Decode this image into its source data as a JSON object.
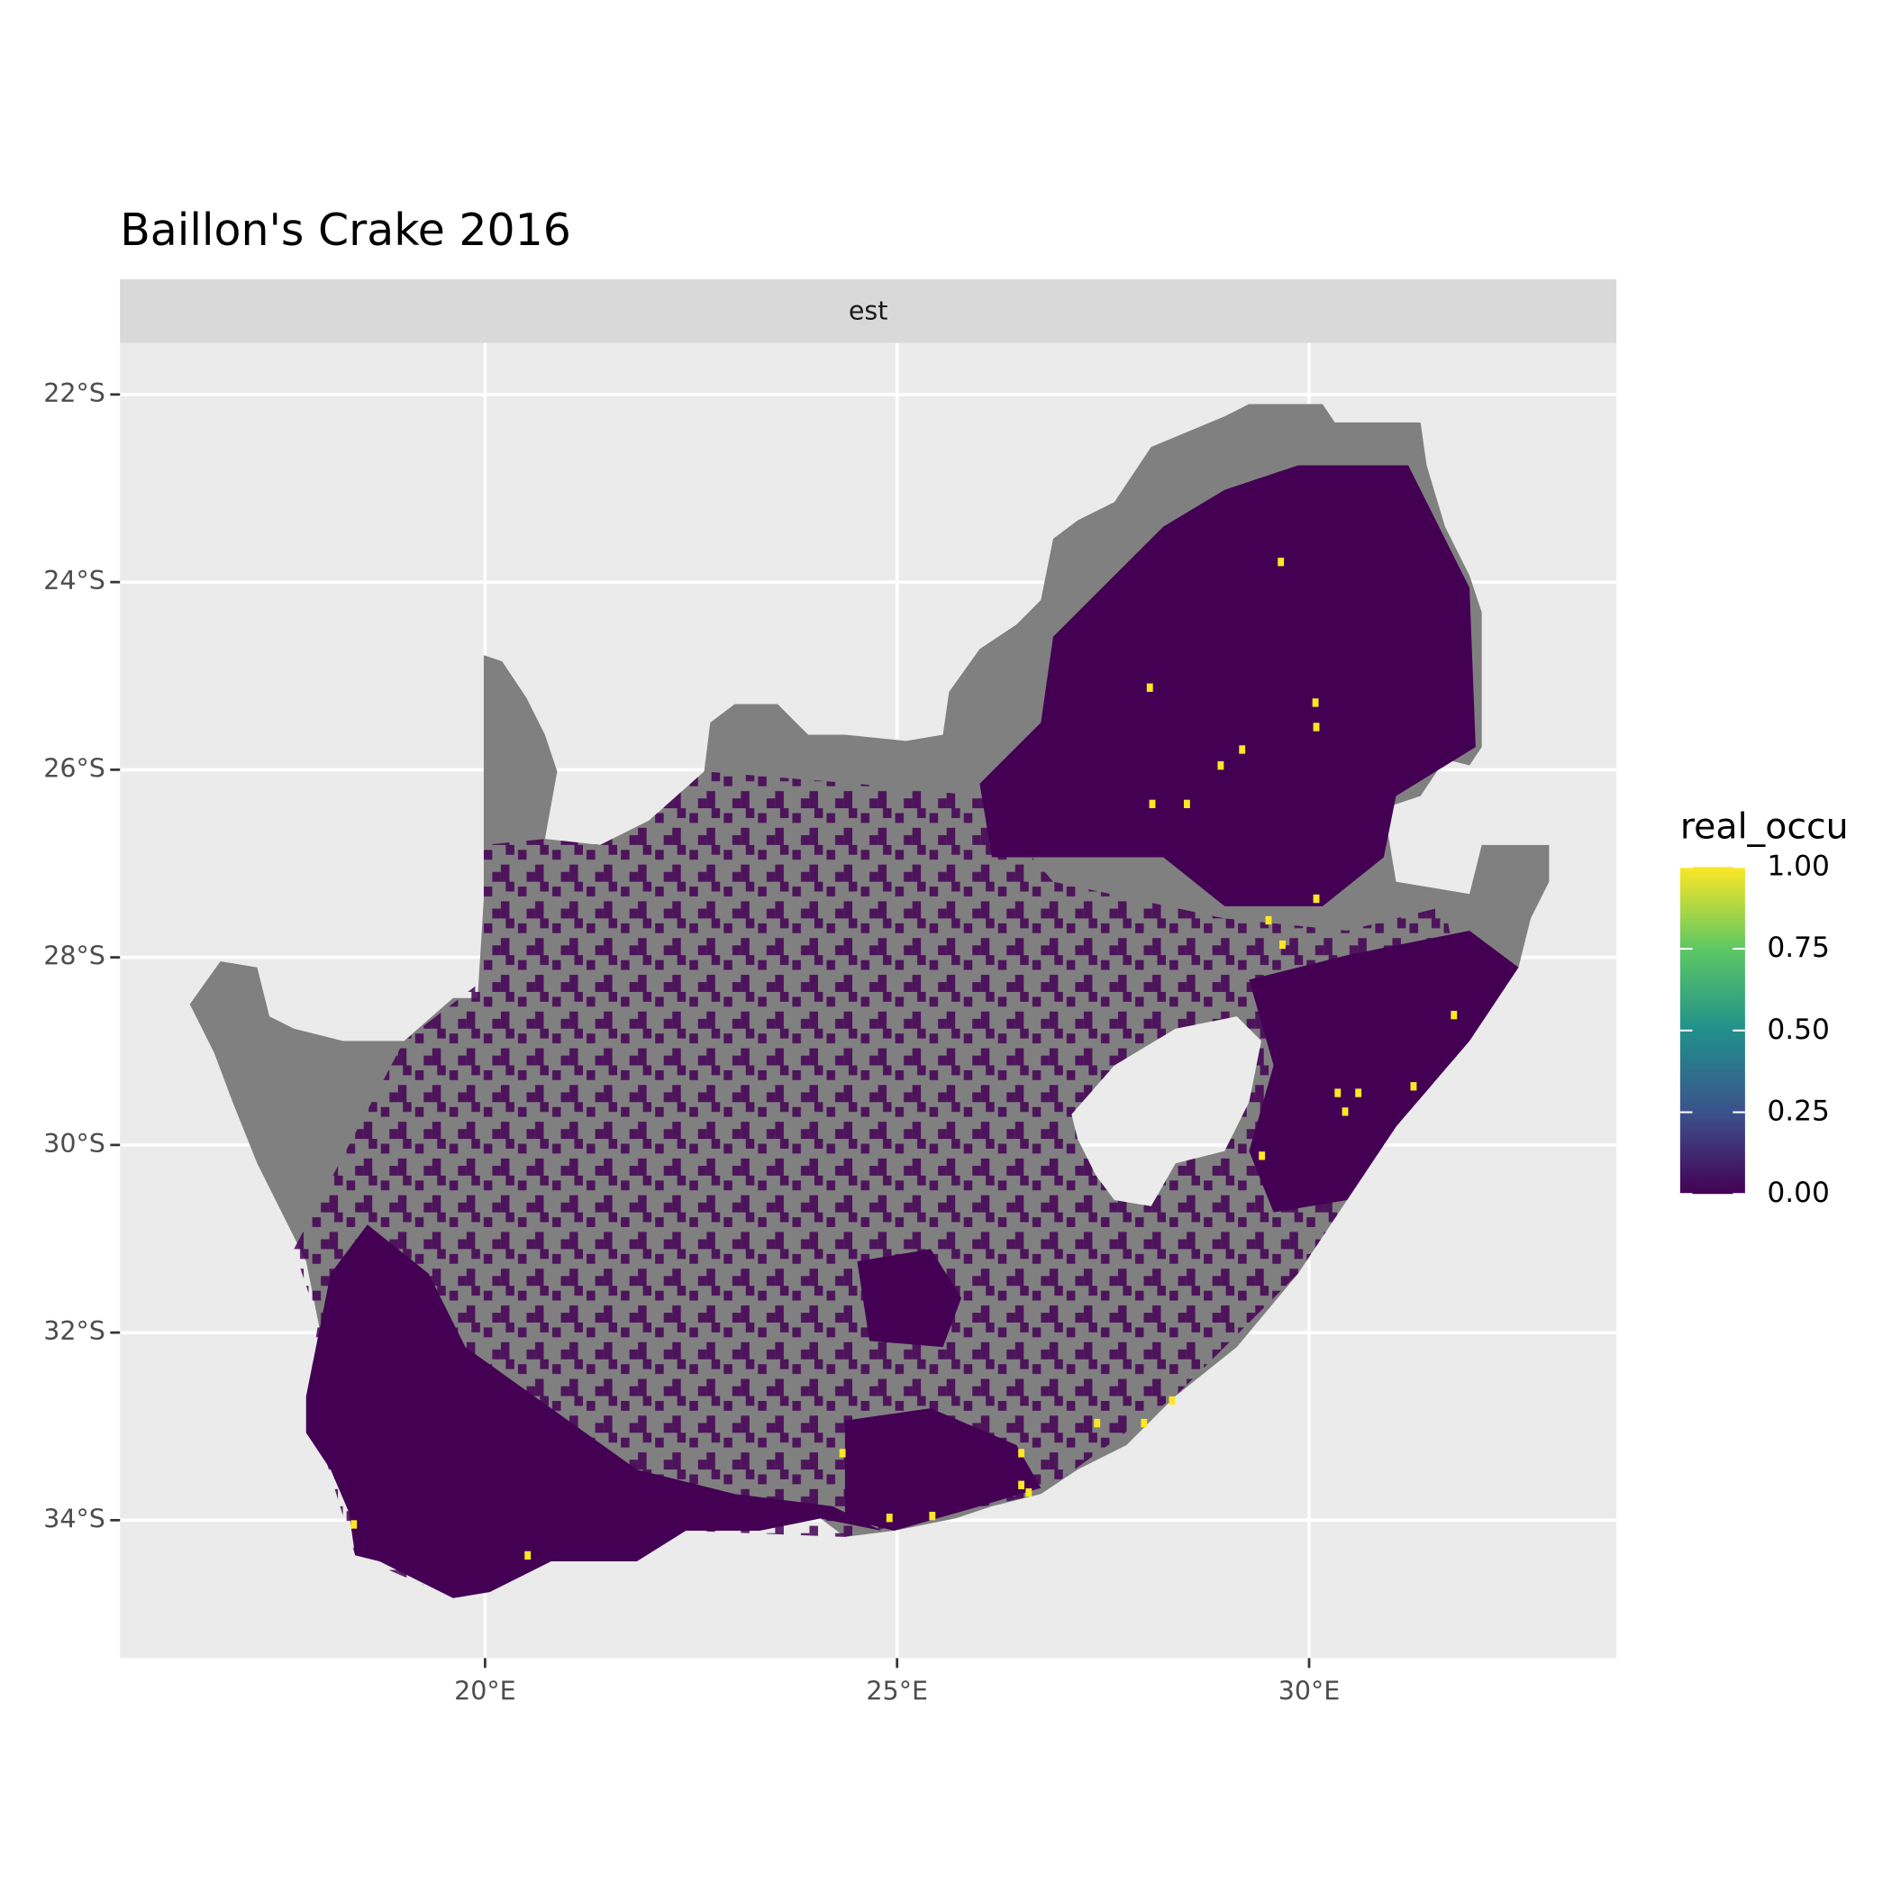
{
  "chart_data": {
    "type": "map",
    "title": "Baillon's Crake 2016",
    "facet": "est",
    "xlim": [
      15.57,
      33.73
    ],
    "ylim": [
      -35.47,
      -21.45
    ],
    "xticks": [
      {
        "value": 20,
        "label": "20°E"
      },
      {
        "value": 25,
        "label": "25°E"
      },
      {
        "value": 30,
        "label": "30°E"
      }
    ],
    "yticks": [
      {
        "value": -22,
        "label": "22°S"
      },
      {
        "value": -24,
        "label": "24°S"
      },
      {
        "value": -26,
        "label": "26°S"
      },
      {
        "value": -28,
        "label": "28°S"
      },
      {
        "value": -30,
        "label": "30°S"
      },
      {
        "value": -32,
        "label": "32°S"
      },
      {
        "value": -34,
        "label": "34°S"
      }
    ],
    "grid": true,
    "legend": {
      "title": "real_occu",
      "lim": [
        0,
        1
      ],
      "ticks": [
        {
          "value": 0,
          "label": "0.00"
        },
        {
          "value": 0.25,
          "label": "0.25"
        },
        {
          "value": 0.5,
          "label": "0.50"
        },
        {
          "value": 0.75,
          "label": "0.75"
        },
        {
          "value": 1,
          "label": "1.00"
        }
      ],
      "colors": [
        "#440154",
        "#3B528B",
        "#21908C",
        "#5DC863",
        "#FDE725"
      ],
      "na_color": "#808080"
    },
    "occurrences": {
      "lon": [
        29.67,
        28.08,
        30.09,
        30.1,
        29.2,
        28.94,
        28.11,
        28.53,
        30.1,
        29.52,
        29.69,
        31.77,
        31.28,
        30.36,
        30.61,
        30.45,
        29.44,
        27.44,
        28.01,
        28.35,
        24.35,
        26.52,
        26.52,
        26.61,
        24.92,
        25.44,
        18.42,
        20.53
      ],
      "lat": [
        -23.79,
        -25.13,
        -25.29,
        -25.55,
        -25.79,
        -25.96,
        -26.37,
        -26.37,
        -27.38,
        -27.61,
        -27.87,
        -28.62,
        -29.38,
        -29.45,
        -29.45,
        -29.65,
        -30.12,
        -32.97,
        -32.97,
        -32.73,
        -33.29,
        -33.29,
        -33.63,
        -33.71,
        -33.98,
        -33.96,
        -34.05,
        -34.38
      ],
      "values": [
        1,
        1,
        1,
        1,
        1,
        1,
        1,
        1,
        1,
        1,
        1,
        1,
        1,
        1,
        1,
        1,
        1,
        1,
        1,
        1,
        1,
        1,
        1,
        1,
        1,
        1,
        1,
        1
      ]
    }
  }
}
